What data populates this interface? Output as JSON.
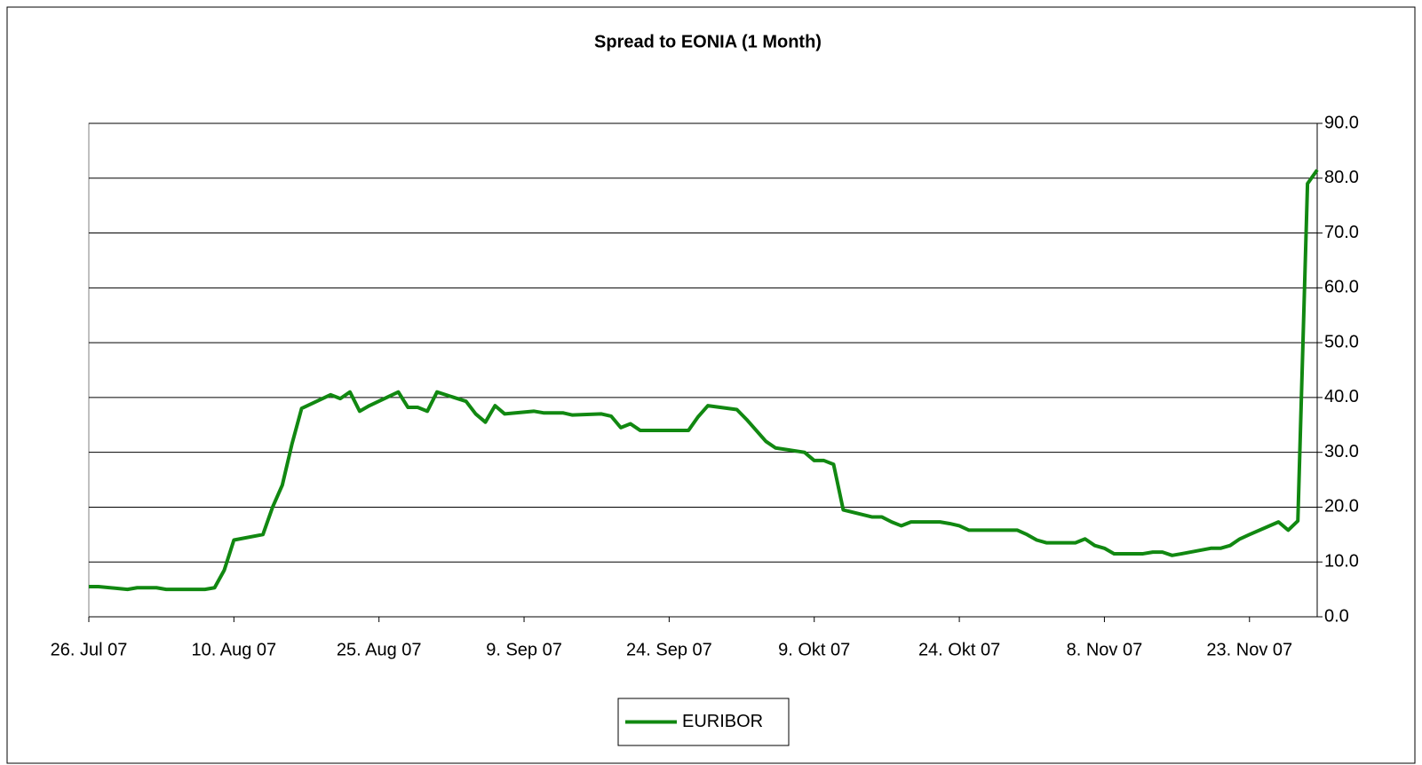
{
  "chart_data": {
    "type": "line",
    "title": "Spread to EONIA (1 Month)",
    "x": [
      "2007-07-26",
      "2007-07-27",
      "2007-07-30",
      "2007-07-31",
      "2007-08-01",
      "2007-08-02",
      "2007-08-03",
      "2007-08-06",
      "2007-08-07",
      "2007-08-08",
      "2007-08-09",
      "2007-08-10",
      "2007-08-13",
      "2007-08-14",
      "2007-08-15",
      "2007-08-16",
      "2007-08-17",
      "2007-08-20",
      "2007-08-21",
      "2007-08-22",
      "2007-08-23",
      "2007-08-24",
      "2007-08-27",
      "2007-08-28",
      "2007-08-29",
      "2007-08-30",
      "2007-08-31",
      "2007-09-03",
      "2007-09-04",
      "2007-09-05",
      "2007-09-06",
      "2007-09-07",
      "2007-09-10",
      "2007-09-11",
      "2007-09-12",
      "2007-09-13",
      "2007-09-14",
      "2007-09-17",
      "2007-09-18",
      "2007-09-19",
      "2007-09-20",
      "2007-09-21",
      "2007-09-24",
      "2007-09-25",
      "2007-09-26",
      "2007-09-27",
      "2007-09-28",
      "2007-10-01",
      "2007-10-02",
      "2007-10-03",
      "2007-10-04",
      "2007-10-05",
      "2007-10-08",
      "2007-10-09",
      "2007-10-10",
      "2007-10-11",
      "2007-10-12",
      "2007-10-15",
      "2007-10-16",
      "2007-10-17",
      "2007-10-18",
      "2007-10-19",
      "2007-10-22",
      "2007-10-23",
      "2007-10-24",
      "2007-10-25",
      "2007-10-26",
      "2007-10-29",
      "2007-10-30",
      "2007-10-31",
      "2007-11-01",
      "2007-11-02",
      "2007-11-05",
      "2007-11-06",
      "2007-11-07",
      "2007-11-08",
      "2007-11-09",
      "2007-11-12",
      "2007-11-13",
      "2007-11-14",
      "2007-11-15",
      "2007-11-16",
      "2007-11-19",
      "2007-11-20",
      "2007-11-21",
      "2007-11-22",
      "2007-11-23",
      "2007-11-26",
      "2007-11-27",
      "2007-11-28",
      "2007-11-29",
      "2007-11-30"
    ],
    "series": [
      {
        "name": "EURIBOR",
        "color": "#118811",
        "values": [
          5.5,
          5.5,
          5.0,
          5.3,
          5.3,
          5.3,
          5.0,
          5.0,
          5.0,
          5.3,
          8.5,
          14.0,
          15.0,
          20.0,
          24.0,
          31.5,
          38.0,
          40.5,
          39.8,
          41.0,
          37.5,
          38.5,
          41.0,
          38.2,
          38.2,
          37.5,
          41.0,
          39.3,
          37.0,
          35.5,
          38.5,
          37.0,
          37.5,
          37.2,
          37.2,
          37.2,
          36.8,
          37.0,
          36.6,
          34.5,
          35.2,
          34.0,
          34.0,
          34.0,
          34.0,
          36.5,
          38.5,
          37.8,
          36.0,
          34.0,
          32.0,
          30.8,
          30.0,
          28.5,
          28.5,
          27.8,
          19.5,
          18.2,
          18.2,
          17.3,
          16.6,
          17.3,
          17.3,
          17.0,
          16.6,
          15.8,
          15.8,
          15.8,
          15.8,
          15.0,
          14.0,
          13.5,
          13.5,
          14.2,
          13.0,
          12.5,
          11.5,
          11.5,
          11.8,
          11.8,
          11.2,
          11.5,
          12.5,
          12.5,
          13.0,
          14.2,
          15.0,
          17.3,
          15.8,
          17.5,
          79.0,
          81.5
        ]
      }
    ],
    "xlim": [
      "2007-07-26",
      "2007-11-30"
    ],
    "xticks": [
      {
        "value": "2007-07-26",
        "label": "26. Jul 07"
      },
      {
        "value": "2007-08-10",
        "label": "10. Aug 07"
      },
      {
        "value": "2007-08-25",
        "label": "25. Aug 07"
      },
      {
        "value": "2007-09-09",
        "label": "9. Sep 07"
      },
      {
        "value": "2007-09-24",
        "label": "24. Sep 07"
      },
      {
        "value": "2007-10-09",
        "label": "9. Okt 07"
      },
      {
        "value": "2007-10-24",
        "label": "24. Okt 07"
      },
      {
        "value": "2007-11-08",
        "label": "8. Nov 07"
      },
      {
        "value": "2007-11-23",
        "label": "23. Nov 07"
      }
    ],
    "ylim": [
      0,
      90
    ],
    "yticks": [
      {
        "value": 0,
        "label": "0.0"
      },
      {
        "value": 10,
        "label": "10.0"
      },
      {
        "value": 20,
        "label": "20.0"
      },
      {
        "value": 30,
        "label": "30.0"
      },
      {
        "value": 40,
        "label": "40.0"
      },
      {
        "value": 50,
        "label": "50.0"
      },
      {
        "value": 60,
        "label": "60.0"
      },
      {
        "value": 70,
        "label": "70.0"
      },
      {
        "value": 80,
        "label": "80.0"
      },
      {
        "value": 90,
        "label": "90.0"
      }
    ],
    "grid": true,
    "legend": "bottom"
  }
}
